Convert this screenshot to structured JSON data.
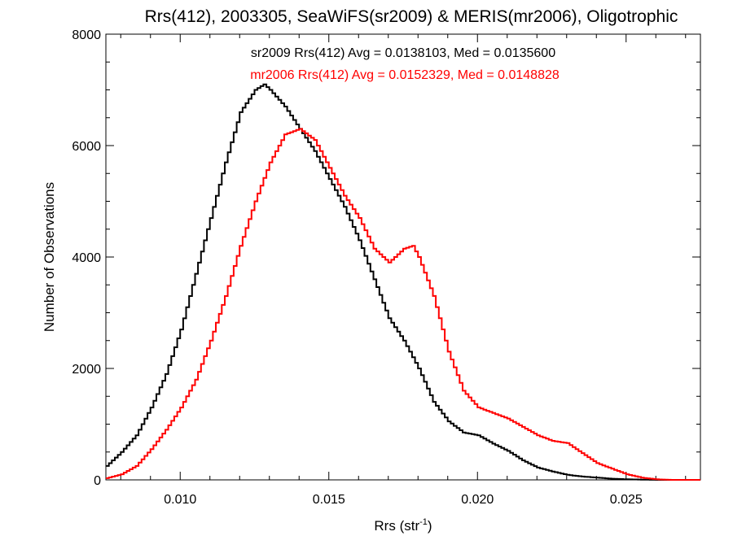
{
  "chart_data": {
    "type": "line",
    "title": "Rrs(412), 2003305, SeaWiFS(sr2009) & MERIS(mr2006), Oligotrophic",
    "xlabel_main": "Rrs (str",
    "xlabel_sup": "-1",
    "xlabel_end": ")",
    "ylabel": "Number of Observations",
    "xlim": [
      0.0075,
      0.0275
    ],
    "ylim": [
      0,
      8000
    ],
    "xticks": [
      0.01,
      0.015,
      0.02,
      0.025
    ],
    "xtick_labels": [
      "0.010",
      "0.015",
      "0.020",
      "0.025"
    ],
    "yticks": [
      0,
      2000,
      4000,
      6000,
      8000
    ],
    "ytick_labels": [
      "0",
      "2000",
      "4000",
      "6000",
      "8000"
    ],
    "annotations": [
      {
        "text": "sr2009 Rrs(412) Avg = 0.0138103, Med = 0.0135600",
        "color": "#000000"
      },
      {
        "text": "mr2006 Rrs(412) Avg = 0.0152329, Med = 0.0148828",
        "color": "#ff0000"
      }
    ],
    "series": [
      {
        "color": "#000000",
        "x": [
          0.0075,
          0.008,
          0.0085,
          0.009,
          0.0095,
          0.01,
          0.0105,
          0.011,
          0.0115,
          0.012,
          0.0125,
          0.0128,
          0.013,
          0.0135,
          0.014,
          0.0145,
          0.015,
          0.0155,
          0.016,
          0.0165,
          0.017,
          0.0175,
          0.018,
          0.0185,
          0.019,
          0.0195,
          0.02,
          0.0205,
          0.021,
          0.0215,
          0.022,
          0.0225,
          0.023,
          0.0235,
          0.024,
          0.0245,
          0.025,
          0.0255,
          0.026
        ],
        "y": [
          250,
          500,
          800,
          1300,
          1900,
          2700,
          3700,
          4700,
          5700,
          6600,
          7000,
          7100,
          7000,
          6700,
          6300,
          5900,
          5400,
          4900,
          4300,
          3600,
          2900,
          2500,
          2000,
          1400,
          1050,
          850,
          800,
          650,
          520,
          350,
          220,
          150,
          90,
          60,
          40,
          20,
          10,
          5,
          0
        ]
      },
      {
        "color": "#ff0000",
        "x": [
          0.0075,
          0.008,
          0.0085,
          0.009,
          0.0095,
          0.01,
          0.0105,
          0.011,
          0.0115,
          0.012,
          0.0125,
          0.013,
          0.0135,
          0.014,
          0.0145,
          0.015,
          0.0155,
          0.016,
          0.0165,
          0.017,
          0.0175,
          0.0178,
          0.018,
          0.0185,
          0.019,
          0.0195,
          0.02,
          0.0205,
          0.021,
          0.0215,
          0.022,
          0.0225,
          0.023,
          0.0235,
          0.024,
          0.0245,
          0.025,
          0.0255,
          0.026,
          0.0265
        ],
        "y": [
          30,
          100,
          250,
          550,
          900,
          1300,
          1800,
          2500,
          3300,
          4200,
          5000,
          5700,
          6200,
          6300,
          6100,
          5600,
          5100,
          4700,
          4150,
          3900,
          4150,
          4200,
          4000,
          3300,
          2300,
          1600,
          1300,
          1200,
          1100,
          950,
          800,
          700,
          660,
          480,
          300,
          200,
          100,
          40,
          10,
          0
        ]
      }
    ]
  }
}
